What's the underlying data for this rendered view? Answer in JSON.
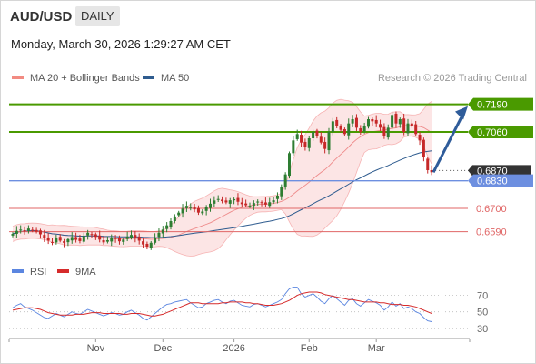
{
  "header": {
    "symbol": "AUD/USD",
    "timeframe": "DAILY",
    "timestamp": "Monday, March 30, 2026 1:29:27 AM CET"
  },
  "legend": {
    "bollinger": {
      "label": "MA 20 + Bollinger Bands",
      "color": "#f28b82"
    },
    "ma50": {
      "label": "MA 50",
      "color": "#2f5c8f"
    },
    "credit": "Research © 2026 Trading Central"
  },
  "colors": {
    "up": "#2e7d32",
    "down": "#c62828",
    "resistance": "#4a9a00",
    "support": "#6d8fe0",
    "pivot_red": "#e06666",
    "arrow": "#2f5c9a",
    "rsi": "#5b86e0",
    "rsi_ma": "#d62b2b",
    "band_fill": "#fbe0e0"
  },
  "chart_data": [
    {
      "type": "candlestick",
      "title": "AUD/USD",
      "ylim": [
        0.649,
        0.724
      ],
      "x_tick_labels": [
        "Nov",
        "Dec",
        "2026",
        "Feb",
        "Mar"
      ],
      "levels": [
        {
          "label": "0.7190",
          "value": 0.719,
          "kind": "resistance",
          "style": "solid"
        },
        {
          "label": "0.7060",
          "value": 0.706,
          "kind": "resistance",
          "style": "solid"
        },
        {
          "label": "0.6870",
          "value": 0.687,
          "kind": "last",
          "style": "dotted"
        },
        {
          "label": "0.6830",
          "value": 0.683,
          "kind": "pivot",
          "style": "solid"
        },
        {
          "label": "0.6700",
          "value": 0.67,
          "kind": "support",
          "style": "solid"
        },
        {
          "label": "0.6590",
          "value": 0.659,
          "kind": "support",
          "style": "solid"
        }
      ],
      "closes": [
        0.658,
        0.6594,
        0.66,
        0.6592,
        0.6605,
        0.6598,
        0.659,
        0.6578,
        0.656,
        0.6548,
        0.654,
        0.656,
        0.6548,
        0.6538,
        0.6555,
        0.6565,
        0.6552,
        0.6546,
        0.657,
        0.6585,
        0.6578,
        0.6566,
        0.6553,
        0.654,
        0.655,
        0.6562,
        0.6556,
        0.6545,
        0.6553,
        0.6567,
        0.6575,
        0.6561,
        0.6548,
        0.653,
        0.652,
        0.6538,
        0.656,
        0.6585,
        0.66,
        0.662,
        0.664,
        0.6662,
        0.668,
        0.6698,
        0.6712,
        0.6706,
        0.6695,
        0.668,
        0.6685,
        0.6708,
        0.6722,
        0.6737,
        0.6744,
        0.6734,
        0.6728,
        0.6738,
        0.6743,
        0.6731,
        0.672,
        0.6715,
        0.6712,
        0.6725,
        0.6732,
        0.6725,
        0.6718,
        0.6729,
        0.6738,
        0.676,
        0.68,
        0.686,
        0.696,
        0.702,
        0.705,
        0.701,
        0.699,
        0.703,
        0.706,
        0.704,
        0.701,
        0.698,
        0.706,
        0.711,
        0.709,
        0.707,
        0.705,
        0.71,
        0.712,
        0.708,
        0.706,
        0.709,
        0.712,
        0.711,
        0.71,
        0.708,
        0.704,
        0.708,
        0.714,
        0.71,
        0.712,
        0.706,
        0.71,
        0.709,
        0.705,
        0.702,
        0.694,
        0.688,
        0.687
      ]
    },
    {
      "type": "line",
      "title": "RSI",
      "ylim": [
        22,
        84
      ],
      "y_ticks": [
        70,
        50,
        30
      ],
      "series": [
        {
          "name": "RSI",
          "values": [
            55,
            58,
            60,
            56,
            54,
            52,
            49,
            46,
            43,
            42,
            45,
            48,
            46,
            44,
            47,
            50,
            48,
            47,
            50,
            53,
            51,
            49,
            47,
            45,
            47,
            49,
            48,
            46,
            47,
            50,
            52,
            49,
            46,
            42,
            40,
            44,
            48,
            52,
            56,
            59,
            60,
            62,
            63,
            64,
            65,
            61,
            58,
            55,
            56,
            60,
            62,
            64,
            65,
            62,
            60,
            63,
            64,
            61,
            58,
            57,
            56,
            59,
            60,
            58,
            56,
            58,
            60,
            62,
            65,
            72,
            78,
            80,
            80,
            72,
            68,
            70,
            72,
            68,
            63,
            60,
            66,
            70,
            66,
            62,
            58,
            64,
            66,
            60,
            57,
            61,
            65,
            63,
            61,
            58,
            52,
            56,
            62,
            57,
            60,
            54,
            56,
            54,
            50,
            48,
            43,
            39,
            38
          ]
        },
        {
          "name": "9MA",
          "values": [
            52,
            53,
            54,
            55,
            55,
            55,
            54,
            53,
            51,
            49,
            48,
            47,
            46,
            46,
            46,
            46,
            47,
            47,
            47,
            48,
            49,
            49,
            49,
            48,
            48,
            48,
            48,
            48,
            47,
            47,
            48,
            48,
            48,
            47,
            46,
            45,
            45,
            46,
            47,
            49,
            51,
            53,
            55,
            57,
            59,
            61,
            61,
            61,
            60,
            60,
            60,
            60,
            60,
            61,
            61,
            62,
            62,
            62,
            62,
            61,
            61,
            60,
            60,
            59,
            58,
            58,
            58,
            59,
            60,
            62,
            64,
            67,
            70,
            72,
            73,
            74,
            74,
            74,
            73,
            71,
            70,
            69,
            68,
            67,
            66,
            65,
            65,
            64,
            63,
            62,
            62,
            62,
            62,
            61,
            61,
            60,
            59,
            59,
            59,
            58,
            58,
            57,
            56,
            54,
            52,
            50,
            48
          ]
        }
      ]
    }
  ]
}
